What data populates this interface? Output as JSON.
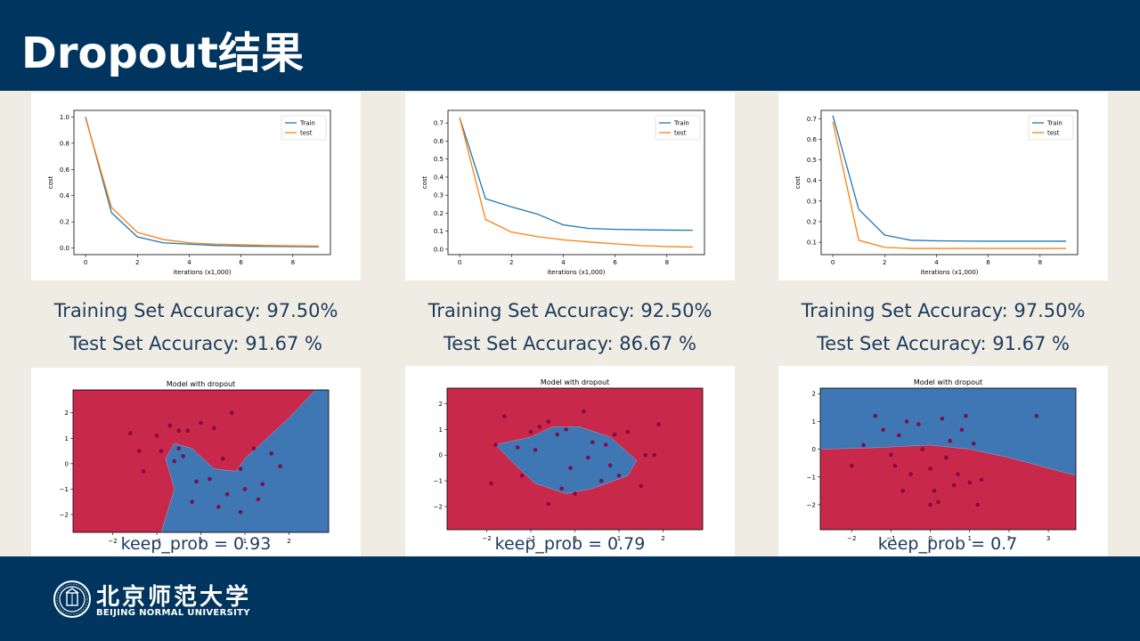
{
  "slide": {
    "title": "Dropout结果",
    "university_cn": "北京师范大学",
    "university_en": "BEIJING NORMAL UNIVERSITY"
  },
  "colors": {
    "header_bg": "#00355f",
    "body_bg": "#efece3",
    "train": "#1f77b4",
    "test": "#ff7f0e",
    "red_region": "#c8294a",
    "blue_region": "#3f76b4",
    "point": "#800040"
  },
  "columns": [
    {
      "train_acc": "Training Set Accuracy: 97.50%",
      "test_acc": "Test Set Accuracy: 91.67 %",
      "keep_prob": "keep_prob = 0.93"
    },
    {
      "train_acc": "Training Set Accuracy: 92.50%",
      "test_acc": "Test Set Accuracy: 86.67 %",
      "keep_prob": "keep_prob = 0.79"
    },
    {
      "train_acc": "Training Set Accuracy: 97.50%",
      "test_acc": "Test Set Accuracy: 91.67 %",
      "keep_prob": "keep_prob = 0.7"
    }
  ],
  "chart_data": [
    {
      "type": "line",
      "xlabel": "iterations (x1,000)",
      "ylabel": "cost",
      "x": [
        0,
        1,
        2,
        3,
        4,
        5,
        6,
        7,
        8,
        9
      ],
      "xlim": [
        -0.45,
        9.45
      ],
      "ylim": [
        -0.05,
        1.05
      ],
      "xticks": [
        0,
        2,
        4,
        6,
        8
      ],
      "yticks": [
        0.0,
        0.2,
        0.4,
        0.6,
        0.8,
        1.0
      ],
      "legend": "top-right",
      "series": [
        {
          "name": "Train",
          "values": [
            1.0,
            0.27,
            0.085,
            0.04,
            0.03,
            0.02,
            0.015,
            0.013,
            0.011,
            0.01
          ]
        },
        {
          "name": "test",
          "values": [
            0.99,
            0.31,
            0.12,
            0.065,
            0.04,
            0.03,
            0.025,
            0.02,
            0.017,
            0.015
          ]
        }
      ]
    },
    {
      "type": "line",
      "xlabel": "iterations (x1,000)",
      "ylabel": "cost",
      "x": [
        0,
        1,
        2,
        3,
        4,
        5,
        6,
        7,
        8,
        9
      ],
      "xlim": [
        -0.45,
        9.45
      ],
      "ylim": [
        -0.03,
        0.77
      ],
      "xticks": [
        0,
        2,
        4,
        6,
        8
      ],
      "yticks": [
        0.0,
        0.1,
        0.2,
        0.3,
        0.4,
        0.5,
        0.6,
        0.7
      ],
      "legend": "top-right",
      "series": [
        {
          "name": "Train",
          "values": [
            0.73,
            0.28,
            0.235,
            0.195,
            0.135,
            0.115,
            0.11,
            0.108,
            0.106,
            0.105
          ]
        },
        {
          "name": "test",
          "values": [
            0.73,
            0.165,
            0.095,
            0.07,
            0.052,
            0.04,
            0.03,
            0.02,
            0.015,
            0.012
          ]
        }
      ]
    },
    {
      "type": "line",
      "xlabel": "iterations (x1,000)",
      "ylabel": "cost",
      "x": [
        0,
        1,
        2,
        3,
        4,
        5,
        6,
        7,
        8,
        9
      ],
      "xlim": [
        -0.45,
        9.45
      ],
      "ylim": [
        0.04,
        0.74
      ],
      "xticks": [
        0,
        2,
        4,
        6,
        8
      ],
      "yticks": [
        0.1,
        0.2,
        0.3,
        0.4,
        0.5,
        0.6,
        0.7
      ],
      "legend": "top-right",
      "series": [
        {
          "name": "Train",
          "values": [
            0.715,
            0.26,
            0.135,
            0.11,
            0.107,
            0.106,
            0.105,
            0.105,
            0.105,
            0.105
          ]
        },
        {
          "name": "test",
          "values": [
            0.685,
            0.11,
            0.075,
            0.07,
            0.07,
            0.07,
            0.07,
            0.07,
            0.07,
            0.07
          ]
        }
      ]
    },
    {
      "type": "scatter",
      "title": "Model with dropout",
      "xlim": [
        -2.9,
        2.9
      ],
      "ylim": [
        -2.7,
        2.9
      ],
      "xticks": [
        -2,
        -1,
        0,
        1,
        2
      ],
      "yticks": [
        -2,
        -1,
        0,
        1,
        2
      ],
      "background_region": "red",
      "blue_region": [
        [
          -0.9,
          -2.7
        ],
        [
          -0.6,
          -1.0
        ],
        [
          -0.8,
          0.2
        ],
        [
          -0.6,
          0.8
        ],
        [
          -0.2,
          0.6
        ],
        [
          0.3,
          -0.2
        ],
        [
          0.8,
          -0.3
        ],
        [
          1.0,
          0.2
        ],
        [
          2.0,
          1.8
        ],
        [
          2.6,
          2.9
        ],
        [
          2.9,
          2.9
        ],
        [
          2.9,
          -2.7
        ]
      ],
      "points": [
        [
          -1.0,
          1.1
        ],
        [
          -0.9,
          0.5
        ],
        [
          -0.7,
          1.5
        ],
        [
          -0.5,
          1.3
        ],
        [
          -0.3,
          1.3
        ],
        [
          0.0,
          1.6
        ],
        [
          0.3,
          1.4
        ],
        [
          0.7,
          2.0
        ],
        [
          -1.6,
          1.2
        ],
        [
          -1.4,
          0.5
        ],
        [
          -1.3,
          -0.3
        ],
        [
          -0.6,
          0.1
        ],
        [
          0.5,
          0.2
        ],
        [
          0.9,
          -0.2
        ],
        [
          1.2,
          0.6
        ],
        [
          -0.4,
          0.3
        ],
        [
          -0.1,
          -0.7
        ],
        [
          0.2,
          -0.6
        ],
        [
          0.6,
          -1.2
        ],
        [
          1.0,
          -1.0
        ],
        [
          1.4,
          -0.8
        ],
        [
          1.6,
          0.4
        ],
        [
          -0.2,
          -1.5
        ],
        [
          0.4,
          -1.7
        ],
        [
          1.3,
          -1.4
        ],
        [
          0.9,
          -1.9
        ],
        [
          1.8,
          -0.1
        ],
        [
          -0.5,
          0.6
        ]
      ]
    },
    {
      "type": "scatter",
      "title": "Model with dropout",
      "xlim": [
        -2.9,
        2.9
      ],
      "ylim": [
        -2.9,
        2.6
      ],
      "xticks": [
        -2,
        -1,
        0,
        1,
        2
      ],
      "yticks": [
        -2,
        -1,
        0,
        1,
        2
      ],
      "background_region": "red",
      "blue_region": [
        [
          -1.8,
          0.4
        ],
        [
          -1.0,
          0.7
        ],
        [
          -0.5,
          1.1
        ],
        [
          0.1,
          1.1
        ],
        [
          0.8,
          0.7
        ],
        [
          1.4,
          -0.2
        ],
        [
          1.2,
          -0.8
        ],
        [
          0.4,
          -1.3
        ],
        [
          -0.2,
          -1.5
        ],
        [
          -0.9,
          -1.1
        ],
        [
          -1.4,
          -0.3
        ]
      ],
      "points": [
        [
          -1.8,
          0.4
        ],
        [
          -1.9,
          -1.1
        ],
        [
          -1.6,
          1.5
        ],
        [
          -1.3,
          0.3
        ],
        [
          -1.0,
          0.9
        ],
        [
          -0.9,
          0.2
        ],
        [
          -0.8,
          1.1
        ],
        [
          -0.6,
          1.3
        ],
        [
          -0.4,
          0.8
        ],
        [
          -0.2,
          1.0
        ],
        [
          0.2,
          1.7
        ],
        [
          0.4,
          0.5
        ],
        [
          0.7,
          0.4
        ],
        [
          0.8,
          -0.4
        ],
        [
          1.0,
          -0.8
        ],
        [
          1.2,
          0.9
        ],
        [
          1.5,
          -1.2
        ],
        [
          1.8,
          0.0
        ],
        [
          1.9,
          1.2
        ],
        [
          -0.6,
          -1.9
        ],
        [
          0.0,
          -1.5
        ],
        [
          0.3,
          -0.1
        ],
        [
          -0.1,
          -0.5
        ],
        [
          0.6,
          -1.0
        ],
        [
          1.6,
          0.0
        ],
        [
          -0.3,
          -1.3
        ],
        [
          0.9,
          0.8
        ],
        [
          -1.2,
          -0.8
        ]
      ]
    },
    {
      "type": "scatter",
      "title": "Model with dropout",
      "xlim": [
        -2.8,
        3.7
      ],
      "ylim": [
        -2.9,
        2.2
      ],
      "xticks": [
        -2,
        -1,
        0,
        1,
        2,
        3
      ],
      "yticks": [
        -2,
        -1,
        0,
        1,
        2
      ],
      "background_region": "red",
      "blue_region": [
        [
          -2.8,
          0.0
        ],
        [
          -1.5,
          0.05
        ],
        [
          0.0,
          0.15
        ],
        [
          1.0,
          0.0
        ],
        [
          2.0,
          -0.3
        ],
        [
          3.7,
          -0.95
        ],
        [
          3.7,
          2.2
        ],
        [
          -2.8,
          2.2
        ]
      ],
      "points": [
        [
          -2.0,
          -0.6
        ],
        [
          -1.4,
          1.2
        ],
        [
          -1.2,
          0.7
        ],
        [
          -1.0,
          -0.2
        ],
        [
          -0.9,
          -0.6
        ],
        [
          -0.8,
          0.5
        ],
        [
          -0.6,
          1.0
        ],
        [
          -0.5,
          -0.9
        ],
        [
          -0.3,
          0.9
        ],
        [
          -0.2,
          0.0
        ],
        [
          0.0,
          -0.7
        ],
        [
          0.1,
          -1.5
        ],
        [
          0.2,
          -1.9
        ],
        [
          0.3,
          1.1
        ],
        [
          0.5,
          0.3
        ],
        [
          0.6,
          -1.3
        ],
        [
          0.7,
          -0.9
        ],
        [
          0.8,
          0.7
        ],
        [
          0.9,
          1.2
        ],
        [
          1.0,
          -1.2
        ],
        [
          1.2,
          -2.0
        ],
        [
          1.3,
          -1.1
        ],
        [
          2.7,
          1.2
        ],
        [
          -0.7,
          -1.5
        ],
        [
          0.4,
          -0.3
        ],
        [
          1.1,
          0.2
        ],
        [
          -1.7,
          0.15
        ],
        [
          0.0,
          -2.0
        ]
      ]
    }
  ]
}
